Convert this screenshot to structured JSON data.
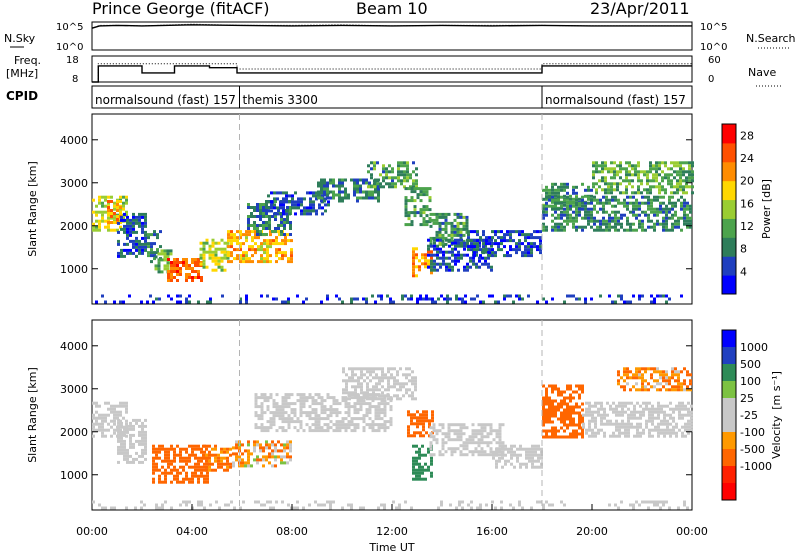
{
  "header": {
    "station": "Prince George (fitACF)",
    "beam": "Beam 10",
    "date": "23/Apr/2011"
  },
  "colors": {
    "power_scale": [
      "#0000ff",
      "#1f3fbf",
      "#2e7d5a",
      "#4ca34c",
      "#9acd32",
      "#ffd700",
      "#ff8c00",
      "#ff5000",
      "#ff0000"
    ],
    "velocity_scale": [
      "#0000ff",
      "#2040c0",
      "#2e8b57",
      "#7cc242",
      "#c8c8c8",
      "#c8c8c8",
      "#ff9900",
      "#ff6600",
      "#ff2000",
      "#ff0000"
    ],
    "axis": "#000000",
    "gridline": "#b4b4b4"
  },
  "chart_data": [
    {
      "type": "line",
      "name_panel": "nsky-nsearch",
      "left_label": "N.Sky",
      "right_label": "N.Search",
      "left_ticks": [
        "10^5",
        "10^0"
      ],
      "right_ticks": [
        "10^5",
        "10^0"
      ],
      "series": [
        {
          "name": "N.Sky",
          "style": "solid",
          "x": [
            0,
            0.3,
            1,
            2,
            4,
            6,
            8,
            10,
            12,
            14,
            16,
            18,
            20,
            22,
            24
          ],
          "y": [
            3.9,
            4.3,
            4.4,
            4.3,
            4.5,
            4.4,
            4.3,
            4.4,
            4.3,
            4.4,
            4.3,
            4.4,
            4.3,
            4.3,
            4.3
          ]
        },
        {
          "name": "N.Search",
          "style": "dotted",
          "x": [
            0,
            0.3,
            1,
            2,
            4,
            6,
            8,
            10,
            12,
            14,
            16,
            18,
            20,
            22,
            24
          ],
          "y": [
            3.9,
            4.4,
            4.4,
            4.3,
            4.6,
            4.4,
            4.4,
            4.5,
            4.3,
            4.4,
            4.4,
            4.4,
            4.3,
            4.3,
            4.3
          ]
        }
      ],
      "ylim": [
        0,
        5
      ]
    },
    {
      "type": "line",
      "name_panel": "freq-nave",
      "left_label_line1": "Freq.",
      "left_label_line2": "[MHz]",
      "right_label": "Nave",
      "left_ticks": [
        "18",
        "8"
      ],
      "right_ticks": [
        "60",
        "0"
      ],
      "ylim_left": [
        8,
        18
      ],
      "ylim_right": [
        0,
        60
      ],
      "series": [
        {
          "name": "Freq.",
          "style": "solid",
          "x": [
            0,
            0.25,
            0.25,
            2,
            2,
            3.3,
            3.3,
            4.7,
            4.7,
            5.8,
            5.8,
            18,
            18,
            24
          ],
          "y": [
            8,
            8,
            14.2,
            14.2,
            11.5,
            11.5,
            14.2,
            14.2,
            13.5,
            13.5,
            11.5,
            11.5,
            14.2,
            14.2
          ]
        },
        {
          "name": "Nave",
          "style": "dotted",
          "x": [
            0,
            0.25,
            0.25,
            5.8,
            5.8,
            18,
            18,
            24
          ],
          "y": [
            0,
            0,
            42,
            42,
            30,
            30,
            42,
            42
          ]
        }
      ]
    },
    {
      "type": "table",
      "name_panel": "cpid",
      "label": "CPID",
      "modes": [
        {
          "name": "normalsound (fast) 157",
          "start": 0,
          "end": 5.9
        },
        {
          "name": "themis 3300",
          "start": 5.9,
          "end": 18.0
        },
        {
          "name": "normalsound (fast) 157",
          "start": 18.0,
          "end": 24
        }
      ]
    },
    {
      "type": "heatmap",
      "name_panel": "power",
      "ylabel": "Slant Range [km]",
      "yticks": [
        1000,
        2000,
        3000,
        4000
      ],
      "ylim": [
        180,
        4600
      ],
      "xlim": [
        0,
        24
      ],
      "colorbar_label": "Power [dB]",
      "colorbar_ticks": [
        4,
        8,
        12,
        16,
        20,
        24,
        28
      ],
      "colorbar_range": [
        0,
        30
      ],
      "regions": [
        {
          "t0": 0.0,
          "t1": 1.4,
          "r0": 1900,
          "r1": 2700,
          "value": 16
        },
        {
          "t0": 0.6,
          "t1": 1.2,
          "r0": 2100,
          "r1": 2600,
          "value": 22
        },
        {
          "t0": 1.0,
          "t1": 2.2,
          "r0": 1300,
          "r1": 2300,
          "value": 6
        },
        {
          "t0": 2.2,
          "t1": 2.8,
          "r0": 1200,
          "r1": 1900,
          "value": 8
        },
        {
          "t0": 2.5,
          "t1": 3.2,
          "r0": 950,
          "r1": 1450,
          "value": 12
        },
        {
          "t0": 3.0,
          "t1": 4.4,
          "r0": 750,
          "r1": 1250,
          "value": 24
        },
        {
          "t0": 4.3,
          "t1": 5.4,
          "r0": 1000,
          "r1": 1700,
          "value": 16
        },
        {
          "t0": 5.4,
          "t1": 8.0,
          "r0": 1200,
          "r1": 1900,
          "value": 20
        },
        {
          "t0": 6.2,
          "t1": 8.0,
          "r0": 1800,
          "r1": 2600,
          "value": 8
        },
        {
          "t0": 7.0,
          "t1": 9.5,
          "r0": 2300,
          "r1": 2800,
          "value": 6
        },
        {
          "t0": 9.0,
          "t1": 11.5,
          "r0": 2600,
          "r1": 3100,
          "value": 8
        },
        {
          "t0": 11.0,
          "t1": 13.0,
          "r0": 2900,
          "r1": 3500,
          "value": 10
        },
        {
          "t0": 12.5,
          "t1": 13.5,
          "r0": 2000,
          "r1": 2900,
          "value": 10
        },
        {
          "t0": 12.8,
          "t1": 13.6,
          "r0": 850,
          "r1": 1500,
          "value": 22
        },
        {
          "t0": 13.5,
          "t1": 15.0,
          "r0": 1600,
          "r1": 2300,
          "value": 10
        },
        {
          "t0": 13.4,
          "t1": 16.0,
          "r0": 1000,
          "r1": 1700,
          "value": 6
        },
        {
          "t0": 15.0,
          "t1": 18.0,
          "r0": 1300,
          "r1": 1900,
          "value": 5
        },
        {
          "t0": 18.0,
          "t1": 20.0,
          "r0": 2400,
          "r1": 3000,
          "value": 10
        },
        {
          "t0": 18.0,
          "t1": 24.0,
          "r0": 1900,
          "r1": 2700,
          "value": 9
        },
        {
          "t0": 20.0,
          "t1": 24.0,
          "r0": 2800,
          "r1": 3500,
          "value": 12
        },
        {
          "t0": 0.0,
          "t1": 24.0,
          "r0": 200,
          "r1": 400,
          "value": 4
        }
      ]
    },
    {
      "type": "heatmap",
      "name_panel": "velocity",
      "ylabel": "Slant Range [km]",
      "yticks": [
        1000,
        2000,
        3000,
        4000
      ],
      "ylim": [
        180,
        4600
      ],
      "xlim": [
        0,
        24
      ],
      "xlabel": "Time UT",
      "xticks": [
        "00:00",
        "04:00",
        "08:00",
        "12:00",
        "16:00",
        "20:00",
        "00:00"
      ],
      "colorbar_label": "Velocity",
      "colorbar_unit": "[m s⁻¹]",
      "colorbar_ticks": [
        "1000",
        "500",
        "100",
        "25",
        "-25",
        "-100",
        "-500",
        "-1000"
      ],
      "regions": [
        {
          "t0": 0.0,
          "t1": 1.4,
          "r0": 1900,
          "r1": 2700,
          "value": 0
        },
        {
          "t0": 1.0,
          "t1": 2.2,
          "r0": 1300,
          "r1": 2300,
          "value": 0
        },
        {
          "t0": 2.4,
          "t1": 4.6,
          "r0": 800,
          "r1": 1700,
          "value": -200
        },
        {
          "t0": 4.4,
          "t1": 5.6,
          "r0": 1100,
          "r1": 1700,
          "value": -150
        },
        {
          "t0": 5.6,
          "t1": 8.0,
          "r0": 1200,
          "r1": 1800,
          "value": -60
        },
        {
          "t0": 6.5,
          "t1": 12.0,
          "r0": 2000,
          "r1": 2900,
          "value": 0
        },
        {
          "t0": 10.0,
          "t1": 13.0,
          "r0": 2800,
          "r1": 3500,
          "value": 0
        },
        {
          "t0": 12.6,
          "t1": 13.6,
          "r0": 1900,
          "r1": 2500,
          "value": -200
        },
        {
          "t0": 12.8,
          "t1": 13.6,
          "r0": 900,
          "r1": 1700,
          "value": 200
        },
        {
          "t0": 13.5,
          "t1": 16.5,
          "r0": 1500,
          "r1": 2200,
          "value": 0
        },
        {
          "t0": 16.0,
          "t1": 18.0,
          "r0": 1200,
          "r1": 1700,
          "value": 0
        },
        {
          "t0": 18.0,
          "t1": 19.6,
          "r0": 1900,
          "r1": 3100,
          "value": -250
        },
        {
          "t0": 19.6,
          "t1": 24.0,
          "r0": 1900,
          "r1": 2700,
          "value": 0
        },
        {
          "t0": 21.0,
          "t1": 24.0,
          "r0": 3000,
          "r1": 3500,
          "value": -80
        },
        {
          "t0": 0.0,
          "t1": 24.0,
          "r0": 200,
          "r1": 400,
          "value": 0
        }
      ]
    }
  ]
}
